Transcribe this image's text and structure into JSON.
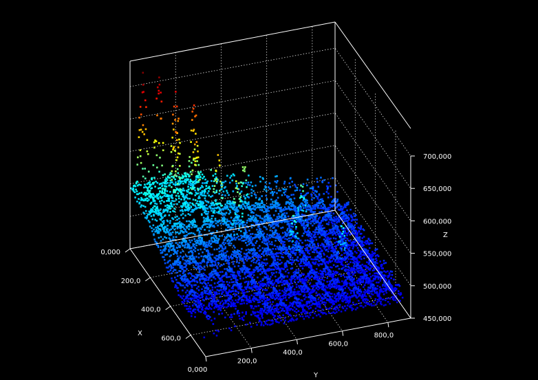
{
  "chart_data": {
    "type": "surface3d",
    "title": "",
    "xlabel": "X",
    "ylabel": "Y",
    "zlabel": "Z",
    "x_ticks": [
      "0,000",
      "200,0",
      "400,0",
      "600,0"
    ],
    "x_tick_values": [
      0,
      200,
      400,
      600
    ],
    "y_ticks": [
      "0,000",
      "200,0",
      "400,0",
      "600,0",
      "800,0"
    ],
    "y_tick_values": [
      0,
      200,
      400,
      600,
      800
    ],
    "z_ticks": [
      "450,000",
      "500,000",
      "550,000",
      "600,000",
      "650,000",
      "700,000"
    ],
    "z_tick_values": [
      450,
      500,
      550,
      600,
      650,
      700
    ],
    "xlim": [
      0,
      750
    ],
    "ylim": [
      0,
      900
    ],
    "zlim": [
      450,
      720
    ],
    "grid": true,
    "colormap": [
      "#00008f",
      "#0000ff",
      "#0080ff",
      "#00ffff",
      "#80ff80",
      "#ffff00",
      "#ff8000",
      "#ff0000",
      "#800000"
    ],
    "background": "#000000",
    "peaks": [
      {
        "x": 40,
        "y": 40,
        "z": 705
      },
      {
        "x": 40,
        "y": 110,
        "z": 695
      },
      {
        "x": 60,
        "y": 175,
        "z": 680
      },
      {
        "x": 80,
        "y": 245,
        "z": 670
      },
      {
        "x": 160,
        "y": 130,
        "z": 655
      },
      {
        "x": 200,
        "y": 200,
        "z": 645
      },
      {
        "x": 260,
        "y": 270,
        "z": 625
      },
      {
        "x": 120,
        "y": 320,
        "z": 610
      },
      {
        "x": 320,
        "y": 330,
        "z": 600
      },
      {
        "x": 200,
        "y": 410,
        "z": 585
      },
      {
        "x": 450,
        "y": 520,
        "z": 560
      },
      {
        "x": 300,
        "y": 620,
        "z": 560
      },
      {
        "x": 520,
        "y": 700,
        "z": 540
      }
    ]
  }
}
